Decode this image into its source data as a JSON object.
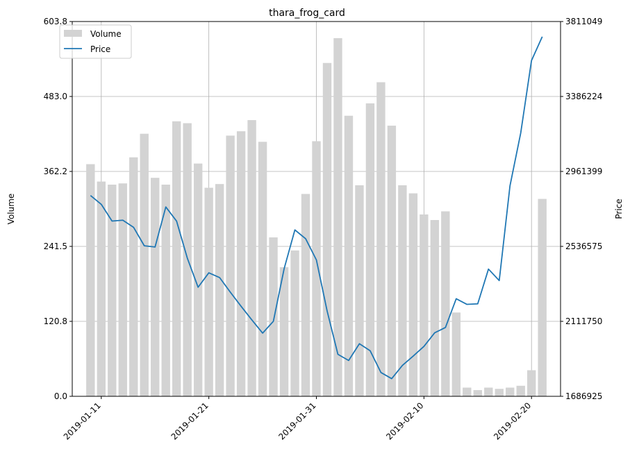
{
  "chart_data": {
    "type": "bar+line",
    "title": "thara_frog_card",
    "xlabel": "",
    "ylabel_left": "Volume",
    "ylabel_right": "Price",
    "grid": true,
    "legend_position": "top-left",
    "start_date": "2019-01-10",
    "x_tick_labels": [
      "2019-01-11",
      "2019-01-21",
      "2019-01-31",
      "2019-02-10",
      "2019-02-20"
    ],
    "y_left_ticks": [
      "0.0",
      "120.8",
      "241.5",
      "362.2",
      "483.0",
      "603.8"
    ],
    "y_right_ticks": [
      "1686925",
      "2111750",
      "2536575",
      "2961399",
      "3386224",
      "3811049"
    ],
    "ylim_left": [
      0,
      603.8
    ],
    "ylim_right": [
      1686925,
      3811049
    ],
    "colors": {
      "volume": "#d3d3d3",
      "price": "#1f77b4",
      "grid": "#b0b0b0"
    },
    "series": [
      {
        "name": "Volume",
        "type": "bar",
        "values": [
          374,
          346,
          341,
          343,
          385,
          423,
          352,
          341,
          443,
          440,
          375,
          336,
          342,
          420,
          427,
          445,
          410,
          256,
          208,
          235,
          326,
          411,
          537,
          577,
          452,
          340,
          472,
          506,
          436,
          340,
          327,
          293,
          284,
          298,
          135,
          14,
          10,
          14,
          12,
          14,
          17,
          42,
          318
        ]
      },
      {
        "name": "Price",
        "type": "line",
        "values": [
          2825000,
          2775000,
          2680000,
          2685000,
          2645000,
          2540000,
          2533000,
          2760000,
          2680000,
          2470000,
          2305000,
          2387000,
          2360000,
          2277000,
          2197000,
          2120000,
          2045000,
          2112000,
          2410000,
          2630000,
          2580000,
          2460000,
          2170000,
          1925000,
          1890000,
          1985000,
          1945000,
          1822000,
          1787000,
          1862000,
          1915000,
          1970000,
          2047000,
          2077000,
          2240000,
          2208000,
          2211000,
          2408000,
          2343000,
          2880000,
          3180000,
          3590000,
          3725000
        ]
      }
    ]
  }
}
